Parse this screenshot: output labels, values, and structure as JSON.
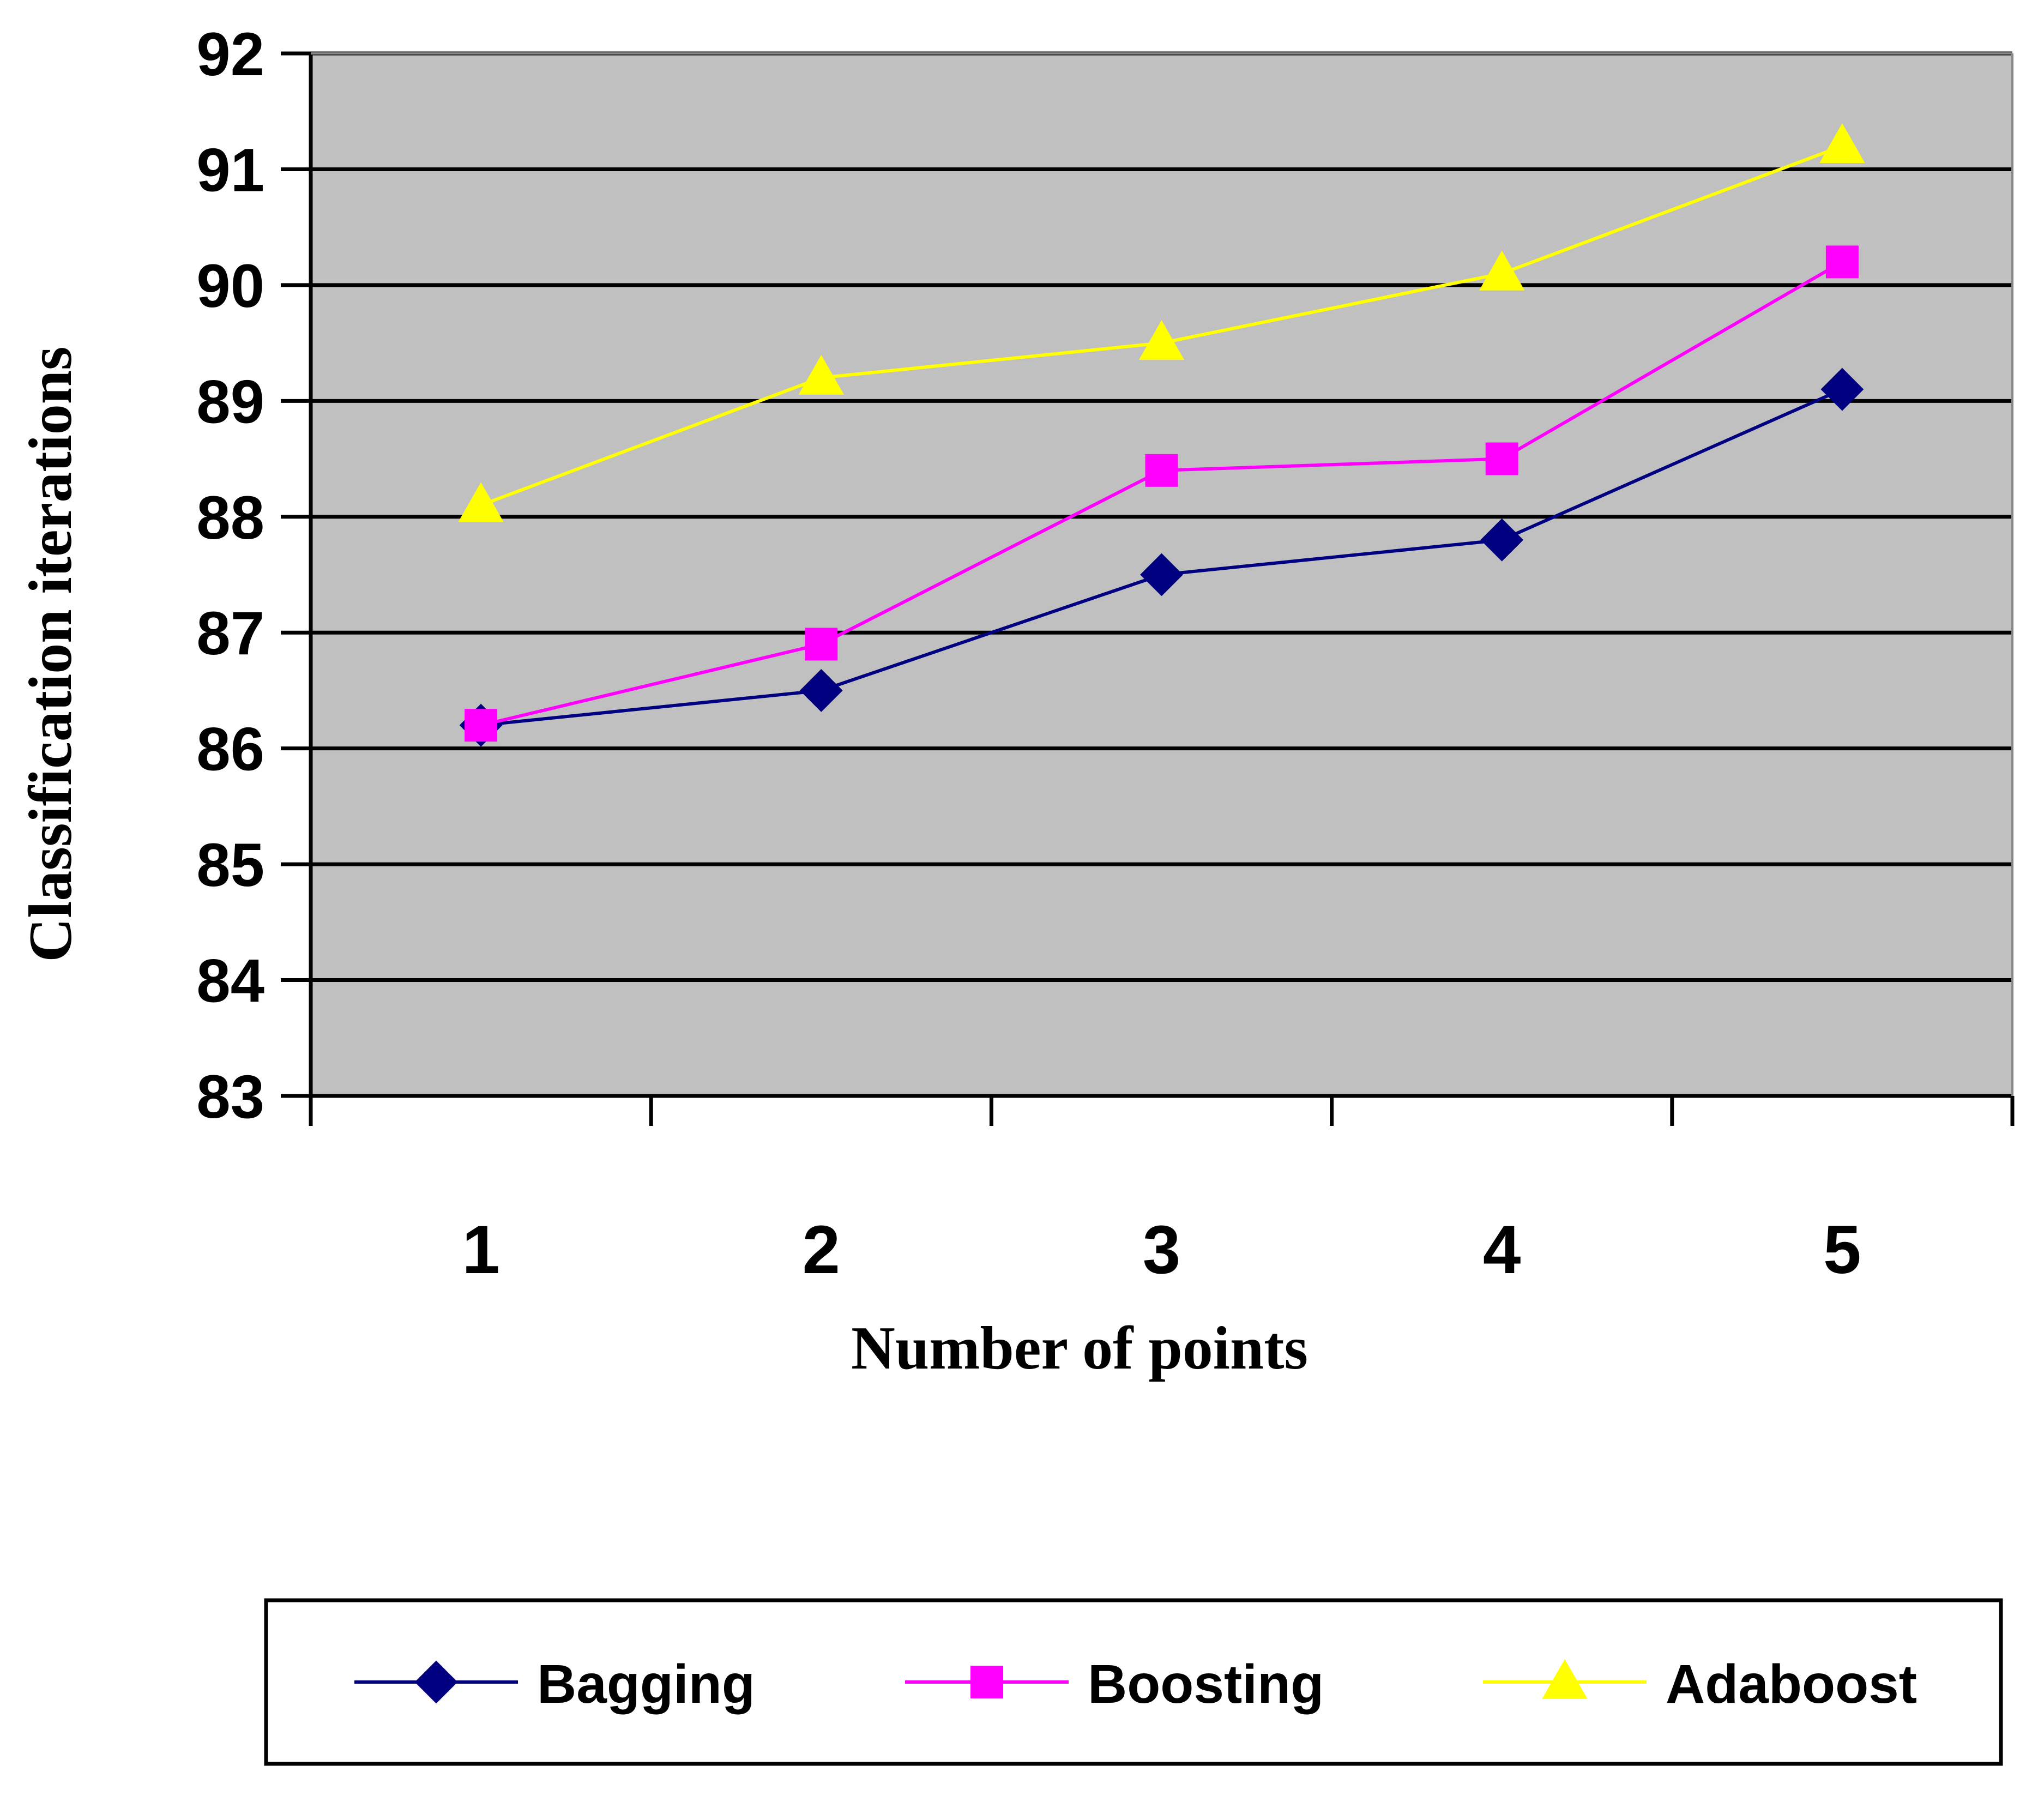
{
  "chart_data": {
    "type": "line",
    "title": "",
    "xlabel": "Number of points",
    "ylabel": "Classification iterations",
    "categories": [
      "1",
      "2",
      "3",
      "4",
      "5"
    ],
    "ylim": [
      83,
      92
    ],
    "yticks": [
      "83",
      "84",
      "85",
      "86",
      "87",
      "88",
      "89",
      "90",
      "91",
      "92"
    ],
    "grid": "horizontal",
    "legend_position": "bottom",
    "series": [
      {
        "name": "Bagging",
        "values": [
          86.2,
          86.5,
          87.5,
          87.8,
          89.1
        ],
        "color": "#000080",
        "marker": "diamond"
      },
      {
        "name": "Boosting",
        "values": [
          86.2,
          86.9,
          88.4,
          88.5,
          90.2
        ],
        "color": "#FF00FF",
        "marker": "square"
      },
      {
        "name": "Adaboost",
        "values": [
          88.1,
          89.2,
          89.5,
          90.1,
          91.2
        ],
        "color": "#FFFF00",
        "marker": "triangle"
      }
    ],
    "plot_background": "#C0C0C0"
  }
}
